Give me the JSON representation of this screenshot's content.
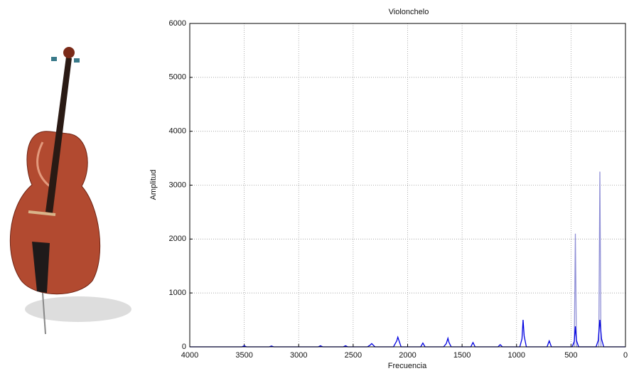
{
  "chart_data": {
    "type": "line",
    "title": "Violonchelo",
    "x_label": "Frecuencia",
    "y_label": "Amplitud",
    "xlim": [
      4000,
      0
    ],
    "xticks": [
      4000,
      3500,
      3000,
      2500,
      2000,
      1500,
      1000,
      500,
      0
    ],
    "ylim": [
      0,
      6000
    ],
    "yticks": [
      0,
      1000,
      2000,
      3000,
      4000,
      5000,
      6000
    ],
    "grid": true,
    "series": [
      {
        "color": "#8f8fd6",
        "x": [
          225,
          235,
          245,
          450,
          460,
          470
        ],
        "values": [
          0,
          3250,
          0,
          0,
          2100,
          0
        ]
      },
      {
        "color": "#0000e0",
        "x": [
          0,
          200,
          220,
          235,
          250,
          270,
          430,
          450,
          460,
          470,
          490,
          680,
          700,
          720,
          910,
          930,
          940,
          950,
          970,
          1130,
          1150,
          1170,
          1380,
          1400,
          1420,
          1600,
          1620,
          1630,
          1645,
          1670,
          1840,
          1860,
          1880,
          2060,
          2080,
          2090,
          2100,
          2130,
          2300,
          2320,
          2330,
          2345,
          2370,
          2550,
          2570,
          2590,
          2780,
          2800,
          2820,
          3230,
          3250,
          3270,
          3480,
          3500,
          3520,
          4000
        ],
        "values": [
          0,
          0,
          150,
          500,
          120,
          0,
          0,
          120,
          380,
          100,
          0,
          0,
          110,
          0,
          0,
          200,
          500,
          150,
          0,
          0,
          40,
          0,
          0,
          80,
          0,
          0,
          80,
          160,
          60,
          0,
          0,
          70,
          0,
          0,
          120,
          180,
          110,
          0,
          0,
          40,
          60,
          30,
          0,
          0,
          20,
          0,
          0,
          20,
          0,
          0,
          15,
          0,
          0,
          20,
          0,
          0
        ]
      }
    ]
  }
}
